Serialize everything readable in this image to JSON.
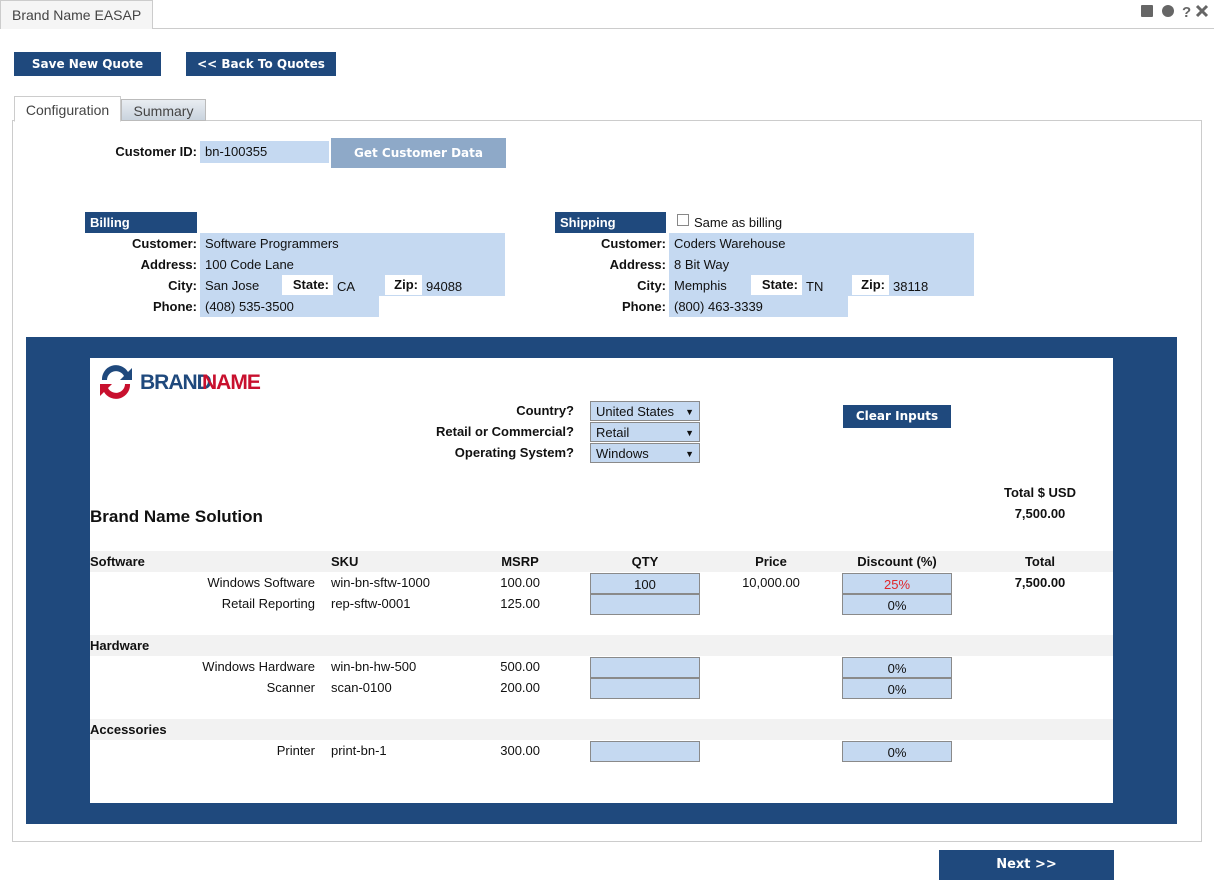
{
  "app_tab": "Brand Name EASAP",
  "buttons": {
    "save": "Save New Quote",
    "back": "<< Back To Quotes",
    "get_customer": "Get Customer Data",
    "clear": "Clear Inputs",
    "next": "Next >>"
  },
  "tabs": [
    "Configuration",
    "Summary"
  ],
  "customer_id": {
    "label": "Customer ID:",
    "value": "bn-100355"
  },
  "billing": {
    "title": "Billing",
    "customer_label": "Customer:",
    "customer": "Software Programmers",
    "address_label": "Address:",
    "address": "100 Code Lane",
    "city_label": "City:",
    "city": "San Jose",
    "state_label": "State:",
    "state": "CA",
    "zip_label": "Zip:",
    "zip": "94088",
    "phone_label": "Phone:",
    "phone": "(408) 535-3500"
  },
  "shipping": {
    "title": "Shipping",
    "same_as_billing": "Same as billing",
    "customer_label": "Customer:",
    "customer": "Coders Warehouse",
    "address_label": "Address:",
    "address": "8 Bit Way",
    "city_label": "City:",
    "city": "Memphis",
    "state_label": "State:",
    "state": "TN",
    "zip_label": "Zip:",
    "zip": "38118",
    "phone_label": "Phone:",
    "phone": "(800) 463-3339"
  },
  "logo": {
    "brand": "BRAND",
    "name": "NAME"
  },
  "options": [
    {
      "label": "Country?",
      "value": "United States"
    },
    {
      "label": "Retail or Commercial?",
      "value": "Retail"
    },
    {
      "label": "Operating System?",
      "value": "Windows"
    }
  ],
  "solution": {
    "title": "Brand Name Solution",
    "total_label": "Total $ USD",
    "total": "7,500.00"
  },
  "table": {
    "columns": [
      "SKU",
      "MSRP",
      "QTY",
      "Price",
      "Discount (%)",
      "Total"
    ],
    "groups": [
      {
        "name": "Software",
        "items": [
          {
            "name": "Windows Software",
            "sku": "win-bn-sftw-1000",
            "msrp": "100.00",
            "qty": "100",
            "price": "10,000.00",
            "discount": "25%",
            "discount_color": "#e0262b",
            "total": "7,500.00"
          },
          {
            "name": "Retail Reporting",
            "sku": "rep-sftw-0001",
            "msrp": "125.00",
            "discount": "0%"
          }
        ]
      },
      {
        "name": "Hardware",
        "items": [
          {
            "name": "Windows Hardware",
            "sku": "win-bn-hw-500",
            "msrp": "500.00",
            "discount": "0%"
          },
          {
            "name": "Scanner",
            "sku": "scan-0100",
            "msrp": "200.00",
            "discount": "0%"
          }
        ]
      },
      {
        "name": "Accessories",
        "items": [
          {
            "name": "Printer",
            "sku": "print-bn-1",
            "msrp": "300.00",
            "discount": "0%"
          }
        ]
      }
    ]
  }
}
